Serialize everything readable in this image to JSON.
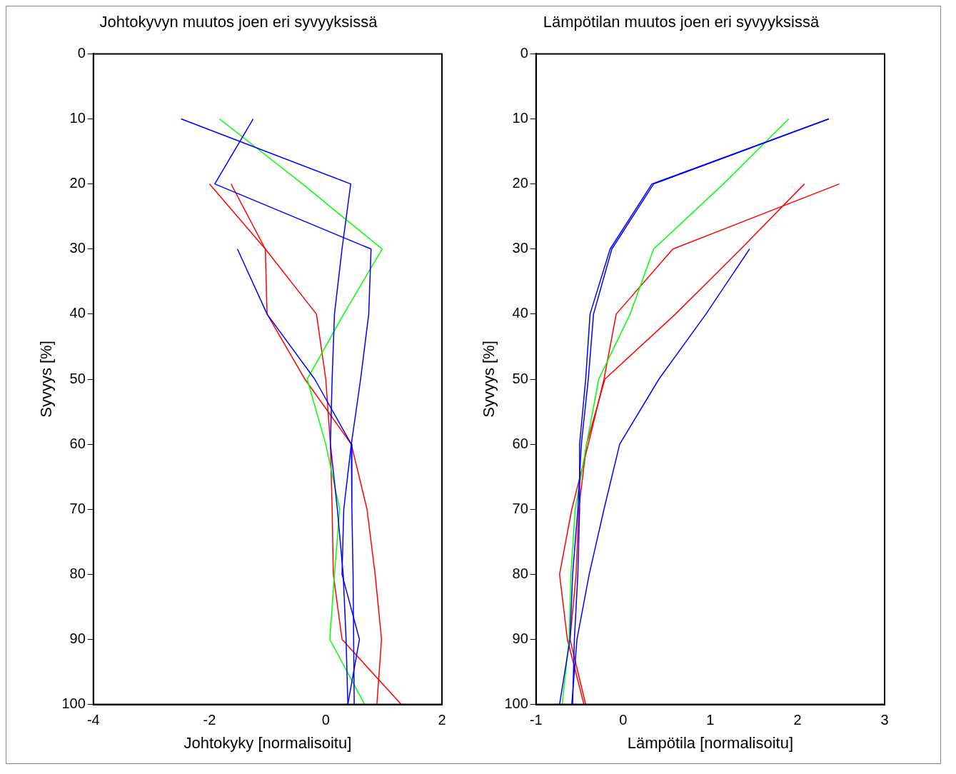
{
  "chart_data": [
    {
      "type": "line",
      "title": "Johtokyvyn muutos joen eri syvyyksissä",
      "xlabel": "Johtokyky [normalisoitu]",
      "ylabel": "Syvyys [%]",
      "xlim": [
        -4,
        2
      ],
      "xticks": [
        -4,
        -2,
        0,
        2
      ],
      "ylim": [
        100,
        0
      ],
      "yticks": [
        0,
        10,
        20,
        30,
        40,
        50,
        60,
        70,
        80,
        90,
        100
      ],
      "grid": false,
      "legend": false,
      "series": [
        {
          "color": "#0000ff",
          "x": [
            -2.49,
            0.43,
            0.28,
            0.15,
            0.11,
            0.08,
            0.2,
            0.3,
            0.35,
            0.38
          ],
          "values": [
            10,
            20,
            30,
            40,
            50,
            60,
            70,
            80,
            90,
            100
          ]
        },
        {
          "color": "#0000ff",
          "x": [
            -1.25,
            -1.91,
            0.78,
            0.74,
            0.6,
            0.44,
            0.31,
            0.28,
            0.58,
            0.38
          ],
          "values": [
            10,
            20,
            30,
            40,
            50,
            60,
            70,
            80,
            90,
            100
          ]
        },
        {
          "color": "#0000ff",
          "x": [
            -1.52,
            -1.01,
            -0.19,
            0.44,
            0.45,
            0.47,
            0.48,
            0.49
          ],
          "values": [
            30,
            40,
            50,
            60,
            70,
            80,
            90,
            100
          ]
        },
        {
          "color": "#00ff00",
          "x": [
            -1.83,
            -0.4,
            0.97,
            0.31,
            -0.32,
            0.0,
            0.24,
            0.15,
            0.07,
            0.67
          ],
          "values": [
            10,
            20,
            30,
            40,
            50,
            60,
            70,
            80,
            90,
            100
          ]
        },
        {
          "color": "#ff0000",
          "x": [
            -2.0,
            -1.04,
            -1.01,
            -0.36,
            0.44,
            0.71,
            0.85,
            0.96,
            0.88
          ],
          "values": [
            20,
            30,
            40,
            50,
            60,
            70,
            80,
            90,
            100
          ]
        },
        {
          "color": "#ff0000",
          "x": [
            -1.63,
            -1.04,
            -0.16,
            0.0,
            0.08,
            0.11,
            0.13,
            0.28,
            1.3
          ],
          "values": [
            20,
            30,
            40,
            50,
            60,
            70,
            80,
            90,
            100
          ]
        }
      ]
    },
    {
      "type": "line",
      "title": "Lämpötilan muutos joen eri syvyyksissä",
      "xlabel": "Lämpötila [normalisoitu]",
      "ylabel": "Syvyys [%]",
      "xlim": [
        -1,
        3
      ],
      "xticks": [
        -1,
        0,
        1,
        2,
        3
      ],
      "ylim": [
        100,
        0
      ],
      "yticks": [
        0,
        10,
        20,
        30,
        40,
        50,
        60,
        70,
        80,
        90,
        100
      ],
      "grid": false,
      "legend": false,
      "series": [
        {
          "color": "#0000ff",
          "x": [
            2.36,
            0.35,
            -0.13,
            -0.34,
            -0.4,
            -0.48,
            -0.52,
            -0.58,
            -0.61,
            -0.73
          ],
          "values": [
            10,
            20,
            30,
            40,
            50,
            60,
            70,
            80,
            90,
            100
          ]
        },
        {
          "color": "#0000ff",
          "x": [
            2.36,
            0.33,
            -0.15,
            -0.38,
            -0.43,
            -0.5,
            -0.5,
            -0.52,
            -0.56,
            -0.58
          ],
          "values": [
            10,
            20,
            30,
            40,
            50,
            60,
            70,
            80,
            90,
            100
          ]
        },
        {
          "color": "#0000ff",
          "x": [
            1.45,
            0.95,
            0.41,
            -0.04,
            -0.22,
            -0.39,
            -0.53,
            -0.59
          ],
          "values": [
            30,
            40,
            50,
            60,
            70,
            80,
            90,
            100
          ]
        },
        {
          "color": "#00ff00",
          "x": [
            1.9,
            1.15,
            0.35,
            0.08,
            -0.28,
            -0.42,
            -0.55,
            -0.6,
            -0.62,
            -0.7
          ],
          "values": [
            10,
            20,
            30,
            40,
            50,
            60,
            70,
            80,
            90,
            100
          ]
        },
        {
          "color": "#ff0000",
          "x": [
            2.48,
            0.57,
            -0.08,
            -0.22,
            -0.4,
            -0.59,
            -0.73,
            -0.64,
            -0.45
          ],
          "values": [
            20,
            30,
            40,
            50,
            60,
            70,
            80,
            90,
            100
          ]
        },
        {
          "color": "#ff0000",
          "x": [
            2.08,
            1.35,
            0.6,
            -0.21,
            -0.42,
            -0.51,
            -0.54,
            -0.61,
            -0.43
          ],
          "values": [
            20,
            30,
            40,
            50,
            60,
            70,
            80,
            90,
            100
          ]
        }
      ]
    }
  ]
}
